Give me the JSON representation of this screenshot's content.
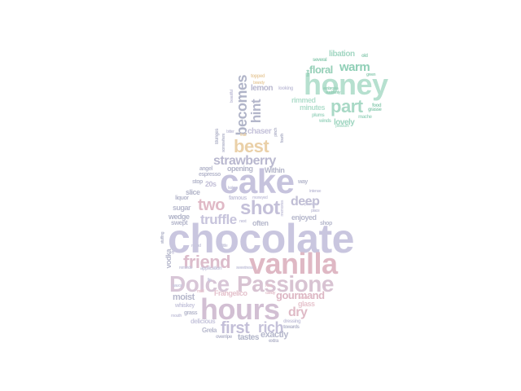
{
  "palette": {
    "lavender": "#c6c3dd",
    "blue_grey": "#aeb2c7",
    "pink": "#e0b8c5",
    "mauve": "#d6c0cf",
    "peach": "#e9cda6",
    "mint": "#8fd3bb",
    "light_mint": "#b7e1d2"
  },
  "words": {
    "chocolate": "chocolate",
    "cake": "cake",
    "hours": "hours",
    "vanilla": "vanilla",
    "passione": "Passione",
    "dolce": "Dolce",
    "honey": "honey",
    "friend": "friend",
    "shot": "shot",
    "two": "two",
    "first": "first",
    "best": "best",
    "truffle": "truffle",
    "part": "part",
    "strawberry": "strawberry",
    "becomes": "becomes",
    "hint": "hint",
    "deep": "deep",
    "rich": "rich",
    "dry": "dry",
    "floral": "floral",
    "warm": "warm",
    "gourmand": "gourmand",
    "moist": "moist",
    "exactly": "exactly",
    "tastes": "tastes",
    "lovely": "lovely",
    "libation": "libation",
    "lemon": "lemon",
    "chaser": "chaser",
    "opening": "opening",
    "within": "Within",
    "wedge": "wedge",
    "slice": "slice",
    "sugar": "sugar",
    "enjoyed": "enjoyed",
    "often": "often",
    "vodka": "vodka",
    "glass": "glass",
    "minutes": "minutes",
    "rimmed": "rimmed",
    "frangelico": "Frangelico",
    "twenties": "20s",
    "delicious": "delicious",
    "grela": "Grela",
    "swept": "swept",
    "liquor": "liquor",
    "famous": "famous",
    "espresso": "espresso",
    "angel": "angel",
    "stop": "stop",
    "way": "way",
    "shop": "shop",
    "whiskey": "whiskey",
    "overripe": "overripe",
    "several": "several",
    "old": "old",
    "mache": "mache",
    "plums": "plums",
    "winds": "winds",
    "food": "food",
    "grasse": "grasse",
    "looking": "looking",
    "topped": "topped",
    "beautiful": "beautiful",
    "application": "application",
    "bunges": "Bunges",
    "somewhere": "somewhere",
    "kakao": "kakao",
    "fourth": "fourth",
    "pinch": "pinch",
    "passion": "passion",
    "grass": "grass",
    "mild": "mild",
    "next": "next",
    "candy": "candy",
    "extra": "extra",
    "dressing": "dressing",
    "towards": "towards",
    "sweetness": "sweetness",
    "moneyed": "moneyed",
    "reminds": "reminds",
    "memories": "memories",
    "intense": "intense",
    "place": "place",
    "fruit": "fruit",
    "dusty": "dusty",
    "faint": "faint",
    "bitter": "bitter",
    "stuffing": "stuffing",
    "nuts": "nuts",
    "sauce": "sauce",
    "green": "green",
    "ambrosia": "ambrosia",
    "brandy": "brandy",
    "suddenly": "suddenly",
    "pleasure": "pleasure",
    "sweet": "sweet",
    "lip": "lip",
    "mouth": "mouth",
    "round": "round",
    "little": "little"
  }
}
